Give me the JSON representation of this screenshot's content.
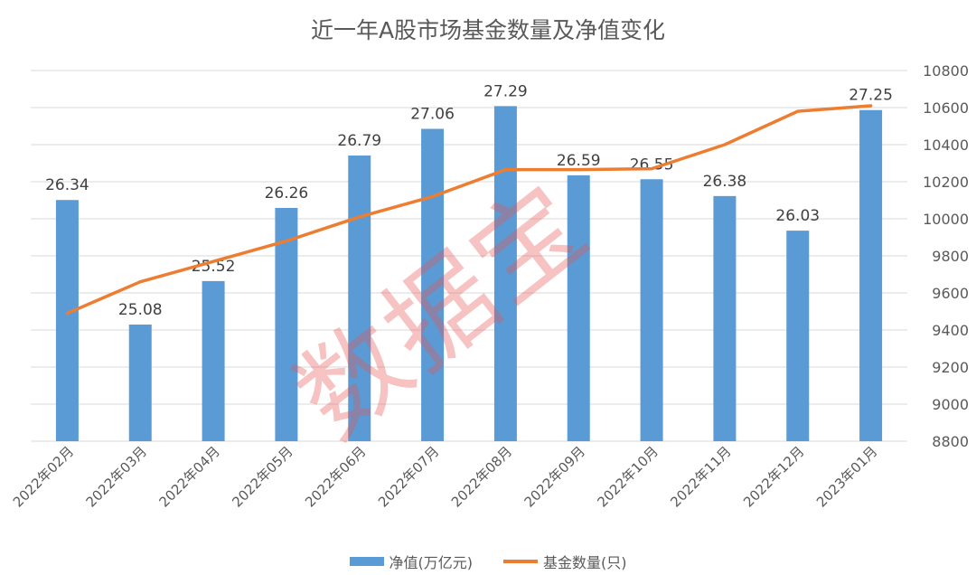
{
  "chart_data": {
    "type": "bar",
    "title": "近一年A股市场基金数量及净值变化",
    "categories": [
      "2022年02月",
      "2022年03月",
      "2022年04月",
      "2022年05月",
      "2022年06月",
      "2022年07月",
      "2022年08月",
      "2022年09月",
      "2022年10月",
      "2022年11月",
      "2022年12月",
      "2023年01月"
    ],
    "series": [
      {
        "name": "净值(万亿元)",
        "type": "bar",
        "axis": "left",
        "color": "#5b9bd5",
        "values": [
          26.34,
          25.08,
          25.52,
          26.26,
          26.79,
          27.06,
          27.29,
          26.59,
          26.55,
          26.38,
          26.03,
          27.25
        ],
        "labels": [
          "26.34",
          "25.08",
          "25.52",
          "26.26",
          "26.79",
          "27.06",
          "27.29",
          "26.59",
          "26.55",
          "26.38",
          "26.03",
          "27.25"
        ]
      },
      {
        "name": "基金数量(只)",
        "type": "line",
        "axis": "right",
        "color": "#ed7d31",
        "values": [
          9490,
          9660,
          9770,
          9880,
          10010,
          10120,
          10265,
          10265,
          10270,
          10400,
          10580,
          10610
        ]
      }
    ],
    "y_left_range": [
      23.9,
      27.65
    ],
    "y_right": {
      "range": [
        8800,
        10800
      ],
      "ticks": [
        "8800",
        "9000",
        "9200",
        "9400",
        "9600",
        "9800",
        "10000",
        "10200",
        "10400",
        "10600",
        "10800"
      ]
    },
    "grid": true,
    "legend_position": "bottom"
  },
  "watermark": "数据宝"
}
